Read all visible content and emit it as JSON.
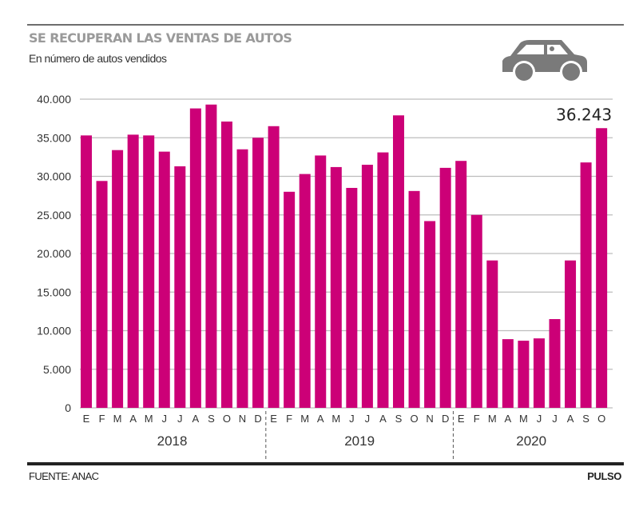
{
  "header": {
    "title": "SE RECUPERAN LAS VENTAS DE AUTOS",
    "subtitle": "En número de autos vendidos",
    "icon": "car-icon"
  },
  "footer": {
    "source": "FUENTE: ANAC",
    "brand": "PULSO"
  },
  "colors": {
    "bar": "#cc0077",
    "grid": "#bdbdbd",
    "title": "#9a9a9a",
    "text": "#333333",
    "icon": "#7a7a7a"
  },
  "chart_data": {
    "type": "bar",
    "title": "SE RECUPERAN LAS VENTAS DE AUTOS",
    "subtitle": "En número de autos vendidos",
    "xlabel": "",
    "ylabel": "",
    "ylim": [
      0,
      40000
    ],
    "yticks": [
      0,
      5000,
      10000,
      15000,
      20000,
      25000,
      30000,
      35000,
      40000
    ],
    "ytick_labels": [
      "0",
      "5.000",
      "10.000",
      "15.000",
      "20.000",
      "25.000",
      "30.000",
      "35.000",
      "40.000"
    ],
    "grid": true,
    "legend": "none",
    "groups": [
      {
        "label": "2018",
        "months": [
          "E",
          "F",
          "M",
          "A",
          "M",
          "J",
          "J",
          "A",
          "S",
          "O",
          "N",
          "D"
        ],
        "values": [
          35300,
          29400,
          33400,
          35400,
          35300,
          33200,
          31300,
          38800,
          39300,
          37100,
          33500,
          35000
        ]
      },
      {
        "label": "2019",
        "months": [
          "E",
          "F",
          "M",
          "A",
          "M",
          "J",
          "J",
          "A",
          "S",
          "O",
          "N",
          "D"
        ],
        "values": [
          36500,
          28000,
          30300,
          32700,
          31200,
          28500,
          31500,
          33100,
          37900,
          28100,
          24200,
          31100
        ]
      },
      {
        "label": "2020",
        "months": [
          "E",
          "F",
          "M",
          "A",
          "M",
          "J",
          "J",
          "A",
          "S",
          "O"
        ],
        "values": [
          32000,
          25000,
          19100,
          8900,
          8700,
          9000,
          11500,
          19100,
          31800,
          36243
        ]
      }
    ],
    "annotations": [
      {
        "target": "2020-O",
        "text": "36.243"
      }
    ]
  }
}
